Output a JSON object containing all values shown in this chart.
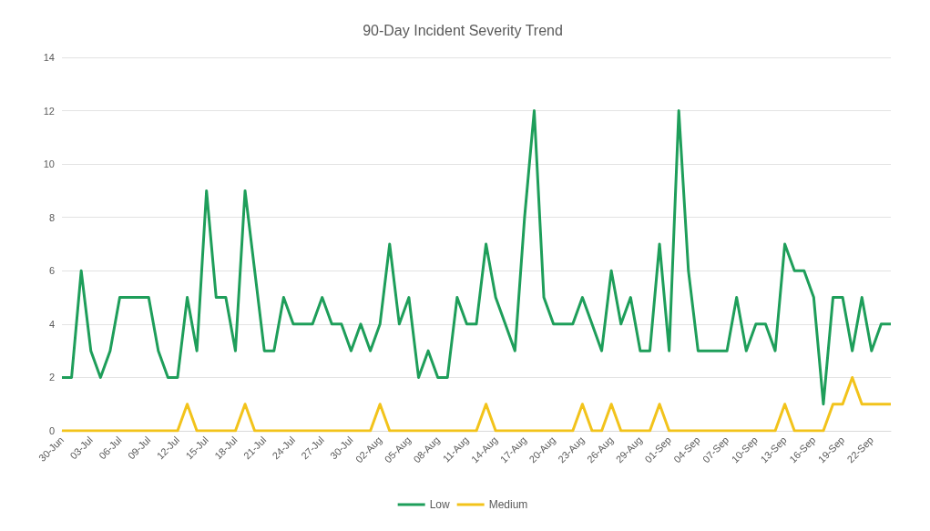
{
  "chart_data": {
    "type": "line",
    "title": "90-Day Incident Severity Trend",
    "categories": [
      "30-Jun",
      null,
      null,
      "03-Jul",
      null,
      null,
      "06-Jul",
      null,
      null,
      "09-Jul",
      null,
      null,
      "12-Jul",
      null,
      null,
      "15-Jul",
      null,
      null,
      "18-Jul",
      null,
      null,
      "21-Jul",
      null,
      null,
      "24-Jul",
      null,
      null,
      "27-Jul",
      null,
      null,
      "30-Jul",
      null,
      null,
      "02-Aug",
      null,
      null,
      "05-Aug",
      null,
      null,
      "08-Aug",
      null,
      null,
      "11-Aug",
      null,
      null,
      "14-Aug",
      null,
      null,
      "17-Aug",
      null,
      null,
      "20-Aug",
      null,
      null,
      "23-Aug",
      null,
      null,
      "26-Aug",
      null,
      null,
      "29-Aug",
      null,
      null,
      "01-Sep",
      null,
      null,
      "04-Sep",
      null,
      null,
      "07-Sep",
      null,
      null,
      "10-Sep",
      null,
      null,
      "13-Sep",
      null,
      null,
      "16-Sep",
      null,
      null,
      "19-Sep",
      null,
      null,
      "22-Sep",
      null,
      null
    ],
    "series": [
      {
        "name": "Low",
        "color": "#1e9e5a",
        "values": [
          2,
          2,
          6,
          3,
          2,
          3,
          5,
          5,
          5,
          5,
          3,
          2,
          2,
          5,
          3,
          9,
          5,
          5,
          3,
          9,
          6,
          3,
          3,
          5,
          4,
          4,
          4,
          5,
          4,
          4,
          3,
          4,
          3,
          4,
          7,
          4,
          5,
          2,
          3,
          2,
          2,
          5,
          4,
          4,
          7,
          5,
          4,
          3,
          8,
          12,
          5,
          4,
          4,
          4,
          5,
          4,
          3,
          6,
          4,
          5,
          3,
          3,
          7,
          3,
          12,
          6,
          3,
          3,
          3,
          3,
          5,
          3,
          4,
          4,
          3,
          7,
          6,
          6,
          5,
          1,
          5,
          5,
          3,
          5,
          3,
          4,
          4
        ]
      },
      {
        "name": "Medium",
        "color": "#f2c31b",
        "values": [
          0,
          0,
          0,
          0,
          0,
          0,
          0,
          0,
          0,
          0,
          0,
          0,
          0,
          1,
          0,
          0,
          0,
          0,
          0,
          1,
          0,
          0,
          0,
          0,
          0,
          0,
          0,
          0,
          0,
          0,
          0,
          0,
          0,
          1,
          0,
          0,
          0,
          0,
          0,
          0,
          0,
          0,
          0,
          0,
          1,
          0,
          0,
          0,
          0,
          0,
          0,
          0,
          0,
          0,
          1,
          0,
          0,
          1,
          0,
          0,
          0,
          0,
          1,
          0,
          0,
          0,
          0,
          0,
          0,
          0,
          0,
          0,
          0,
          0,
          0,
          1,
          0,
          0,
          0,
          0,
          1,
          1,
          2,
          1,
          1,
          1,
          1
        ]
      }
    ],
    "ylim": [
      0,
      14
    ],
    "yticks": [
      0,
      2,
      4,
      6,
      8,
      10,
      12,
      14
    ],
    "grid": "y",
    "legend": "bottom",
    "marker": "none",
    "line_style": "solid"
  }
}
